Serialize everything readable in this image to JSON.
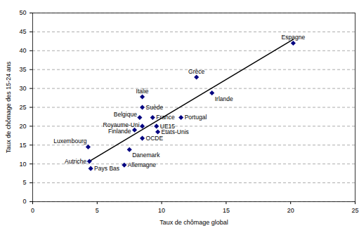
{
  "chart_data": {
    "type": "scatter",
    "xlabel": "Taux de chômage global",
    "ylabel": "Taux de chômage des 15-24 ans",
    "categories": [
      "Espagne",
      "Grèce",
      "Irlande",
      "Italie",
      "Suède",
      "Belgique",
      "France",
      "Portugal",
      "Royaume-Uni",
      "Finlande",
      "UE15",
      "Etats-Unis",
      "OCDE",
      "Luxembourg",
      "Danemark",
      "Autriche",
      "Pays Bas",
      "Allemagne"
    ],
    "x": [
      20.2,
      12.7,
      13.9,
      8.5,
      8.5,
      8.3,
      9.3,
      11.5,
      8.5,
      7.9,
      9.6,
      9.7,
      8.5,
      4.3,
      7.5,
      4.4,
      4.5,
      7.1
    ],
    "values": [
      42,
      33,
      28.8,
      27.8,
      25,
      22.3,
      22.3,
      22.3,
      20,
      19,
      20,
      18.5,
      16.8,
      14.5,
      13.8,
      10.7,
      8.8,
      9.7
    ],
    "trendline": {
      "x": [
        4.4,
        20.2
      ],
      "y": [
        10.7,
        43
      ]
    },
    "color": "#000080",
    "marker": "diamond",
    "xlim": [
      0,
      25
    ],
    "xticks": [
      0,
      5,
      10,
      15,
      20,
      25
    ],
    "ylim": [
      0,
      50
    ],
    "yticks": [
      0,
      5,
      10,
      15,
      20,
      25,
      30,
      35,
      40,
      45,
      50
    ],
    "grid": true
  }
}
